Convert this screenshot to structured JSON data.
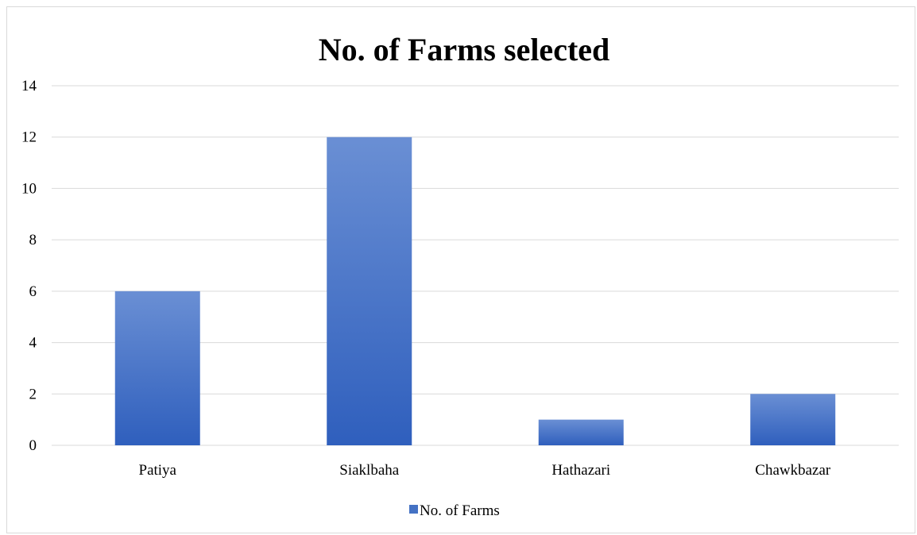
{
  "chart_data": {
    "type": "bar",
    "title": "No. of Farms selected",
    "xlabel": "",
    "ylabel": "",
    "categories": [
      "Patiya",
      "Siaklbaha",
      "Hathazari",
      "Chawkbazar"
    ],
    "series": [
      {
        "name": "No. of Farms",
        "values": [
          6,
          12,
          1,
          2
        ]
      }
    ],
    "ylim": [
      0,
      14
    ],
    "yticks": [
      "0",
      "2",
      "4",
      "6",
      "8",
      "10",
      "12",
      "14"
    ],
    "grid": true,
    "legend": "bottom",
    "colors": {
      "bar_top": "#6a8fd4",
      "bar_bottom": "#2f5fbd",
      "legend_swatch": "#4472c4"
    }
  }
}
